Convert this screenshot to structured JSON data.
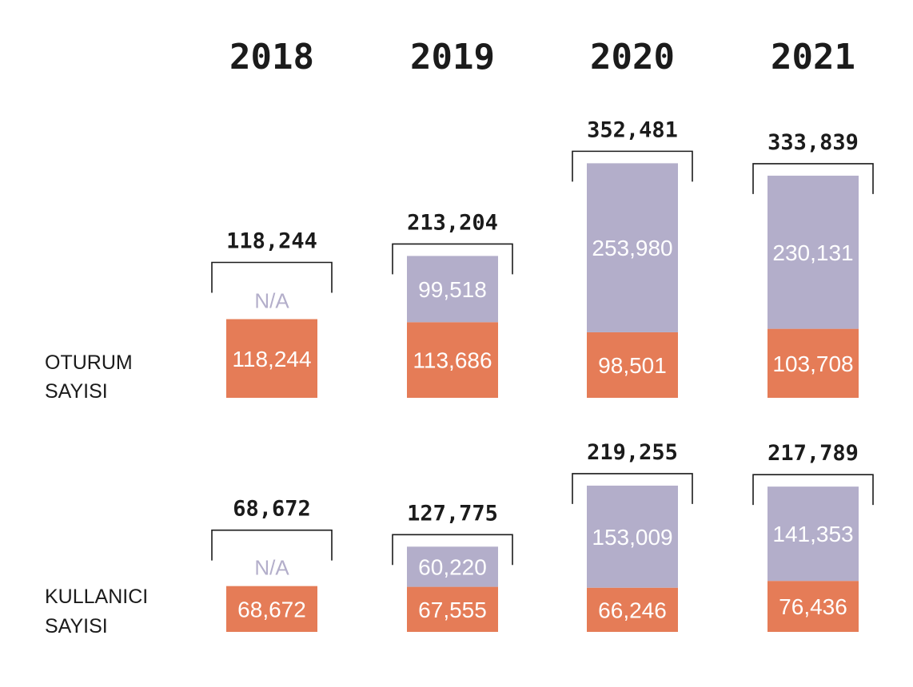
{
  "colors": {
    "top_segment": "#b3aeca",
    "bottom_segment": "#e57c57",
    "na_text": "#b3aeca",
    "text": "#1b1b1b"
  },
  "chart_data": {
    "type": "bar",
    "stacked": true,
    "categories": [
      "2018",
      "2019",
      "2020",
      "2021"
    ],
    "panels": [
      {
        "label_lines": [
          "OTURUM",
          "SAYISI"
        ],
        "totals": [
          "118,244",
          "213,204",
          "352,481",
          "333,839"
        ],
        "top_labels": [
          "N/A",
          "99,518",
          "253,980",
          "230,131"
        ],
        "bottom_labels": [
          "118,244",
          "113,686",
          "98,501",
          "103,708"
        ],
        "top_values": [
          null,
          99518,
          253980,
          230131
        ],
        "bottom_values": [
          118244,
          113686,
          98501,
          103708
        ]
      },
      {
        "label_lines": [
          "KULLANICI",
          "SAYISI"
        ],
        "totals": [
          "68,672",
          "127,775",
          "219,255",
          "217,789"
        ],
        "top_labels": [
          "N/A",
          "60,220",
          "153,009",
          "141,353"
        ],
        "bottom_labels": [
          "68,672",
          "67,555",
          "66,246",
          "76,436"
        ],
        "top_values": [
          null,
          60220,
          153009,
          141353
        ],
        "bottom_values": [
          68672,
          67555,
          66246,
          76436
        ]
      }
    ]
  }
}
